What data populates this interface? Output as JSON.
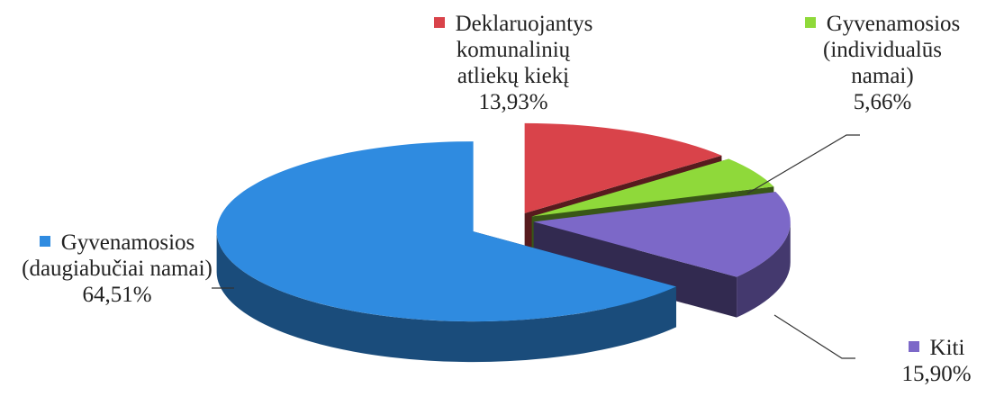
{
  "chart_data": {
    "type": "pie",
    "categories": [
      "Deklaruojantys komunalinių atliekų kiekį",
      "Gyvenamosios (individualūs namai)",
      "Kiti",
      "Gyvenamosios (daugiabučiai namai)"
    ],
    "values": [
      13.93,
      5.66,
      15.9,
      64.51
    ],
    "value_labels": [
      "13,93%",
      "5,66%",
      "15,90%",
      "64,51%"
    ],
    "colors": [
      "#d9434a",
      "#8fd93a",
      "#7c68c8",
      "#2f8be0"
    ]
  }
}
